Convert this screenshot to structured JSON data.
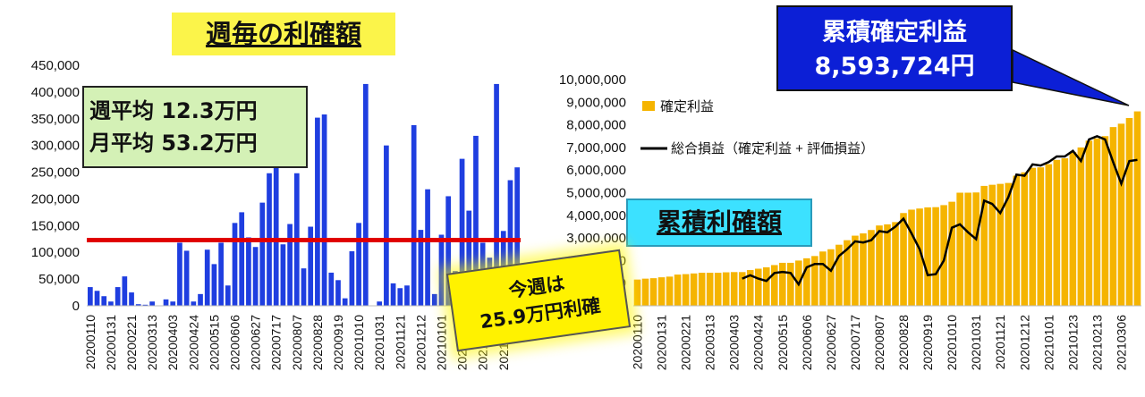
{
  "titles": {
    "weekly": "週毎の利確額",
    "cumulative": "累積利確額"
  },
  "avg": {
    "weekly": "週平均 12.3万円",
    "monthly": "月平均 53.2万円"
  },
  "this_week": {
    "line1": "今週は",
    "line2": "25.9万円利確"
  },
  "total": {
    "title": "累積確定利益",
    "value": "8,593,724円"
  },
  "colors": {
    "weekly_bar": "#1f3ee0",
    "average_line": "#e00000",
    "cumulative_bar": "#f5b400",
    "total_line": "#000000"
  },
  "chart_data": [
    {
      "type": "bar",
      "title": "週毎の利確額",
      "ylim": [
        0,
        450000
      ],
      "yticks": [
        "0",
        "50,000",
        "100,000",
        "150,000",
        "200,000",
        "250,000",
        "300,000",
        "350,000",
        "400,000",
        "450,000"
      ],
      "xtick_labels": [
        "20200110",
        "20200131",
        "20200221",
        "20200313",
        "20200403",
        "20200424",
        "20200515",
        "20200606",
        "20200627",
        "20200717",
        "20200807",
        "20200828",
        "20200919",
        "20201010",
        "20201031",
        "20201121",
        "20201212",
        "20210101",
        "20210123",
        "20210213",
        "20210306"
      ],
      "values": [
        35000,
        28000,
        18000,
        8000,
        35000,
        55000,
        25000,
        3000,
        2000,
        8000,
        0,
        12000,
        8000,
        118000,
        103000,
        8000,
        22000,
        105000,
        78000,
        118000,
        38000,
        155000,
        175000,
        128000,
        110000,
        193000,
        248000,
        260000,
        115000,
        153000,
        248000,
        70000,
        148000,
        352000,
        358000,
        62000,
        48000,
        14000,
        102000,
        155000,
        415000,
        0,
        8000,
        300000,
        42000,
        33000,
        38000,
        338000,
        142000,
        218000,
        22000,
        133000,
        205000,
        65000,
        275000,
        178000,
        318000,
        118000,
        90000,
        415000,
        140000,
        235000,
        259000
      ],
      "average": 123000,
      "legend": "none"
    },
    {
      "type": "bar+line",
      "title": "累積利確額",
      "ylim": [
        0,
        10000000
      ],
      "yticks": [
        "0",
        "1,000,000",
        "2,000,000",
        "3,000,000",
        "4,000,000",
        "5,000,000",
        "6,000,000",
        "7,000,000",
        "8,000,000",
        "9,000,000",
        "10,000,000"
      ],
      "xtick_labels": [
        "20200110",
        "20200131",
        "20200221",
        "20200313",
        "20200403",
        "20200424",
        "20200515",
        "20200606",
        "20200627",
        "20200717",
        "20200807",
        "20200828",
        "20200919",
        "20201010",
        "20201031",
        "20201121",
        "20201212",
        "20210101",
        "20210123",
        "20210213",
        "20210306"
      ],
      "legend_position": "top-left",
      "series": [
        {
          "name": "確定利益",
          "type": "bar",
          "values": [
            1160000,
            1200000,
            1220000,
            1260000,
            1290000,
            1380000,
            1400000,
            1430000,
            1460000,
            1460000,
            1460000,
            1480000,
            1490000,
            1490000,
            1580000,
            1640000,
            1700000,
            1800000,
            1900000,
            1900000,
            2000000,
            2100000,
            2200000,
            2400000,
            2500000,
            2700000,
            2900000,
            3100000,
            3200000,
            3350000,
            3550000,
            3600000,
            3700000,
            4100000,
            4250000,
            4300000,
            4350000,
            4360000,
            4450000,
            4600000,
            5000000,
            5000000,
            5010000,
            5300000,
            5350000,
            5390000,
            5430000,
            5750000,
            5900000,
            6100000,
            6120000,
            6260000,
            6450000,
            6520000,
            6800000,
            7000000,
            7300000,
            7400000,
            7500000,
            7900000,
            8050000,
            8300000,
            8593724
          ]
        },
        {
          "name": "総合損益（確定利益 + 評価損益）",
          "type": "line",
          "start_index": 13,
          "values": [
            1200000,
            1350000,
            1200000,
            1100000,
            1450000,
            1500000,
            1450000,
            950000,
            1700000,
            1850000,
            1850000,
            1550000,
            2200000,
            2500000,
            2850000,
            2800000,
            2900000,
            3300000,
            3250000,
            3500000,
            3850000,
            3200000,
            2500000,
            1350000,
            1400000,
            2000000,
            3450000,
            3600000,
            3250000,
            2950000,
            4650000,
            4500000,
            4100000,
            4800000,
            5800000,
            5750000,
            6250000,
            6200000,
            6350000,
            6600000,
            6600000,
            6850000,
            6400000,
            7350000,
            7500000,
            7350000,
            6350000,
            5400000,
            6400000,
            6450000
          ]
        }
      ]
    }
  ]
}
